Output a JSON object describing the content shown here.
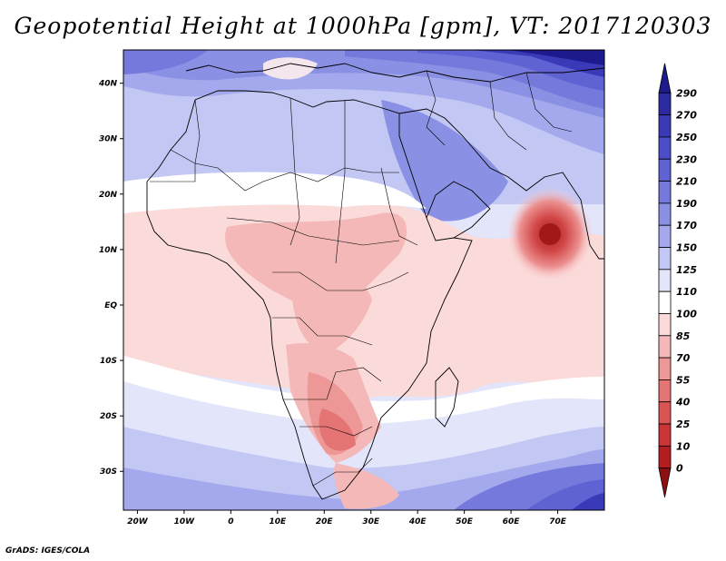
{
  "title": "Geopotential Height at 1000hPa [gpm], VT: 2017120303",
  "credit": "GrADS: IGES/COLA",
  "map": {
    "lon_range": [
      -23,
      80
    ],
    "lat_range": [
      -37,
      46
    ],
    "lon_ticks": [
      {
        "value": -20,
        "label": "20W"
      },
      {
        "value": -10,
        "label": "10W"
      },
      {
        "value": 0,
        "label": "0"
      },
      {
        "value": 10,
        "label": "10E"
      },
      {
        "value": 20,
        "label": "20E"
      },
      {
        "value": 30,
        "label": "30E"
      },
      {
        "value": 40,
        "label": "40E"
      },
      {
        "value": 50,
        "label": "50E"
      },
      {
        "value": 60,
        "label": "60E"
      },
      {
        "value": 70,
        "label": "70E"
      }
    ],
    "lat_ticks": [
      {
        "value": 40,
        "label": "40N"
      },
      {
        "value": 30,
        "label": "30N"
      },
      {
        "value": 20,
        "label": "20N"
      },
      {
        "value": 10,
        "label": "10N"
      },
      {
        "value": 0,
        "label": "EQ"
      },
      {
        "value": -10,
        "label": "10S"
      },
      {
        "value": -20,
        "label": "20S"
      },
      {
        "value": -30,
        "label": "30S"
      }
    ]
  },
  "colorbar": {
    "levels": [
      "290",
      "270",
      "250",
      "230",
      "210",
      "190",
      "170",
      "150",
      "125",
      "110",
      "100",
      "85",
      "70",
      "55",
      "40",
      "25",
      "10",
      "0"
    ],
    "colors": [
      "#1c1a8c",
      "#2b2aa3",
      "#3a3ab8",
      "#4c4dc8",
      "#5f62d3",
      "#7479db",
      "#8a90e3",
      "#a3a9ec",
      "#c3c7f3",
      "#e3e5fa",
      "#ffffff",
      "#fbdada",
      "#f5b8b8",
      "#ee9797",
      "#e57575",
      "#db5454",
      "#cc3535",
      "#b41e1e",
      "#8e1010"
    ]
  }
}
